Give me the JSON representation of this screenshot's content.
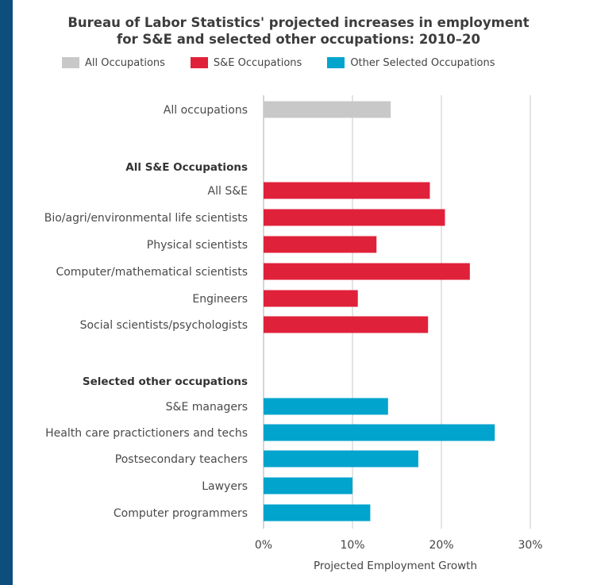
{
  "title_lines": [
    "Bureau of Labor Statistics' projected increases in employment",
    "for S&E and selected other occupations: 2010–20"
  ],
  "colors": {
    "background": "#0d4f7c",
    "all_occupations": "#c8c8c8",
    "se_occupations": "#e0213a",
    "other_occupations": "#00a4cc",
    "grid": "#c9c9c9"
  },
  "legend": [
    {
      "label": "All Occupations",
      "color": "#c8c8c8"
    },
    {
      "label": "S&E Occupations",
      "color": "#e0213a"
    },
    {
      "label": "Other Selected Occupations",
      "color": "#00a4cc"
    }
  ],
  "chart_data": {
    "type": "bar",
    "orientation": "horizontal",
    "xlabel": "Projected Employment Growth",
    "xlim": [
      0,
      30
    ],
    "xticks": [
      "0%",
      "10%",
      "20%",
      "30%"
    ],
    "grid": true,
    "legend_position": "top",
    "rows": [
      {
        "label": "All occupations",
        "value": 14.3,
        "group": "all",
        "color": "#c8c8c8",
        "kind": "bar"
      },
      {
        "label": "All S&E Occupations",
        "kind": "header"
      },
      {
        "label": "All S&E",
        "value": 18.7,
        "group": "se",
        "color": "#e0213a",
        "kind": "bar"
      },
      {
        "label": "Bio/agri/environmental life scientists",
        "value": 20.4,
        "group": "se",
        "color": "#e0213a",
        "kind": "bar"
      },
      {
        "label": "Physical scientists",
        "value": 12.7,
        "group": "se",
        "color": "#e0213a",
        "kind": "bar"
      },
      {
        "label": "Computer/mathematical scientists",
        "value": 23.2,
        "group": "se",
        "color": "#e0213a",
        "kind": "bar"
      },
      {
        "label": "Engineers",
        "value": 10.6,
        "group": "se",
        "color": "#e0213a",
        "kind": "bar"
      },
      {
        "label": "Social scientists/psychologists",
        "value": 18.5,
        "group": "se",
        "color": "#e0213a",
        "kind": "bar"
      },
      {
        "label": "Selected other occupations",
        "kind": "header"
      },
      {
        "label": "S&E managers",
        "value": 14.0,
        "group": "other",
        "color": "#00a4cc",
        "kind": "bar"
      },
      {
        "label": "Health care practictioners and techs",
        "value": 26.0,
        "group": "other",
        "color": "#00a4cc",
        "kind": "bar"
      },
      {
        "label": "Postsecondary teachers",
        "value": 17.4,
        "group": "other",
        "color": "#00a4cc",
        "kind": "bar"
      },
      {
        "label": "Lawyers",
        "value": 10.0,
        "group": "other",
        "color": "#00a4cc",
        "kind": "bar"
      },
      {
        "label": "Computer programmers",
        "value": 12.0,
        "group": "other",
        "color": "#00a4cc",
        "kind": "bar"
      }
    ]
  }
}
